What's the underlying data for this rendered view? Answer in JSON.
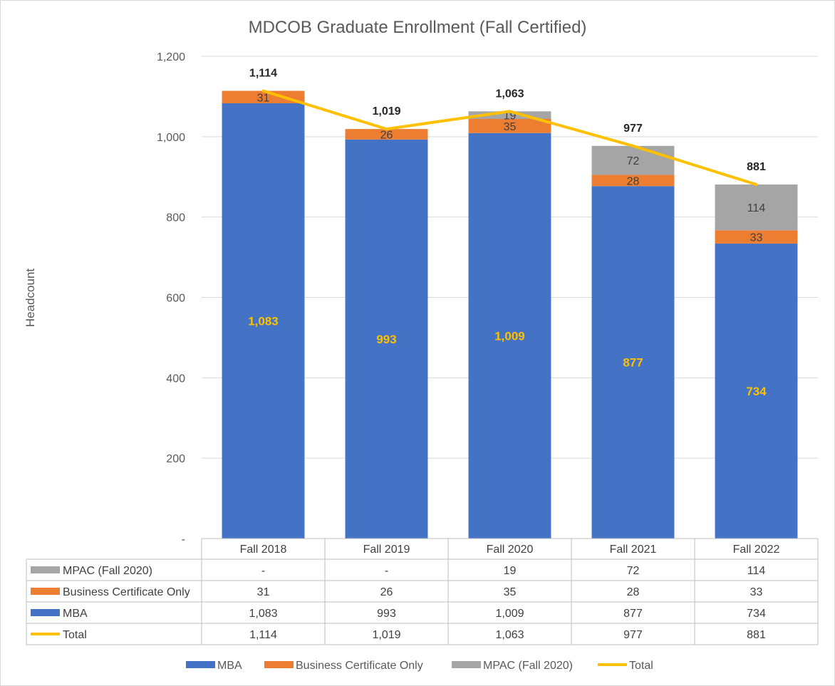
{
  "chart_data": {
    "type": "bar",
    "stacked": true,
    "title": "MDCOB Graduate Enrollment (Fall Certified)",
    "ylabel": "Headcount",
    "xlabel": "",
    "ylim": [
      0,
      1200
    ],
    "yticks": [
      0,
      200,
      400,
      600,
      800,
      1000,
      1200
    ],
    "ytick_labels": [
      "-",
      "200",
      "400",
      "600",
      "800",
      "1,000",
      "1,200"
    ],
    "grid": true,
    "legend_position": "bottom",
    "categories": [
      "Fall 2018",
      "Fall 2019",
      "Fall 2020",
      "Fall 2021",
      "Fall 2022"
    ],
    "series": [
      {
        "name": "MBA",
        "type": "bar",
        "color": "#4472c4",
        "label_color": "#ffc000",
        "values": [
          1083,
          993,
          1009,
          877,
          734
        ],
        "labels": [
          "1,083",
          "993",
          "1,009",
          "877",
          "734"
        ]
      },
      {
        "name": "Business Certificate Only",
        "type": "bar",
        "color": "#ed7d31",
        "label_color": "#404040",
        "values": [
          31,
          26,
          35,
          28,
          33
        ],
        "labels": [
          "31",
          "26",
          "35",
          "28",
          "33"
        ]
      },
      {
        "name": "MPAC (Fall 2020)",
        "type": "bar",
        "color": "#a5a5a5",
        "label_color": "#404040",
        "values": [
          0,
          0,
          19,
          72,
          114
        ],
        "labels": [
          "",
          "",
          "19",
          "72",
          "114"
        ]
      },
      {
        "name": "Total",
        "type": "line",
        "color": "#ffc000",
        "label_color": "#262626",
        "values": [
          1114,
          1019,
          1063,
          977,
          881
        ],
        "labels": [
          "1,114",
          "1,019",
          "1,063",
          "977",
          "881"
        ]
      }
    ],
    "data_table": {
      "rows": [
        {
          "name": "MPAC (Fall 2020)",
          "color": "#a5a5a5",
          "marker": "box",
          "cells": [
            "-",
            "-",
            "19",
            "72",
            "114"
          ]
        },
        {
          "name": "Business Certificate Only",
          "color": "#ed7d31",
          "marker": "box",
          "cells": [
            "31",
            "26",
            "35",
            "28",
            "33"
          ]
        },
        {
          "name": "MBA",
          "color": "#4472c4",
          "marker": "box",
          "cells": [
            "1,083",
            "993",
            "1,009",
            "877",
            "734"
          ]
        },
        {
          "name": "Total",
          "color": "#ffc000",
          "marker": "line",
          "cells": [
            "1,114",
            "1,019",
            "1,063",
            "977",
            "881"
          ]
        }
      ]
    },
    "legend": [
      {
        "name": "MBA",
        "color": "#4472c4",
        "marker": "box"
      },
      {
        "name": "Business Certificate Only",
        "color": "#ed7d31",
        "marker": "box"
      },
      {
        "name": "MPAC (Fall 2020)",
        "color": "#a5a5a5",
        "marker": "box"
      },
      {
        "name": "Total",
        "color": "#ffc000",
        "marker": "line"
      }
    ]
  }
}
